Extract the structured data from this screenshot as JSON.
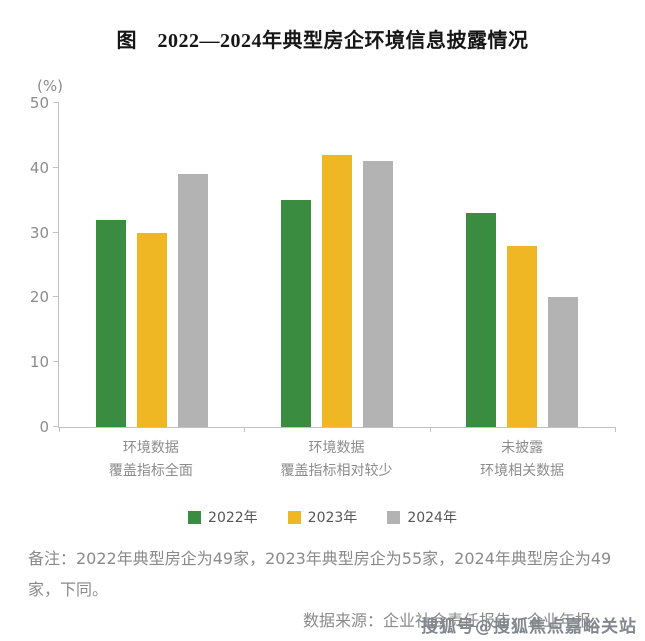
{
  "title": "图　2022—2024年典型房企环境信息披露情况",
  "chart_data": {
    "type": "bar",
    "title": "2022—2024年典型房企环境信息披露情况",
    "xlabel": "",
    "ylabel": "(%)",
    "ylim": [
      0,
      50
    ],
    "yticks": [
      0,
      10,
      20,
      30,
      40,
      50
    ],
    "grid": false,
    "legend_position": "bottom",
    "categories": [
      [
        "环境数据",
        "覆盖指标全面"
      ],
      [
        "环境数据",
        "覆盖指标相对较少"
      ],
      [
        "未披露",
        "环境相关数据"
      ]
    ],
    "series": [
      {
        "name": "2022年",
        "color": "#3a8c40",
        "values": [
          32,
          35,
          33
        ]
      },
      {
        "name": "2023年",
        "color": "#efb723",
        "values": [
          30,
          42,
          28
        ]
      },
      {
        "name": "2024年",
        "color": "#b3b3b3",
        "values": [
          39,
          41,
          20
        ]
      }
    ]
  },
  "note": "备注：2022年典型房企为49家，2023年典型房企为55家，2024年典型房企为49家，下同。",
  "source": "数据来源：企业社会责任报告、企业年报。",
  "watermark": "搜狐号@搜狐焦点嘉峪关站",
  "colors": {
    "axis": "#c2c2c2",
    "tick_text": "#8c8c8c",
    "note_text": "#8a8a8a",
    "series_2022": "#3a8c40",
    "series_2023": "#efb723",
    "series_2024": "#b3b3b3"
  }
}
